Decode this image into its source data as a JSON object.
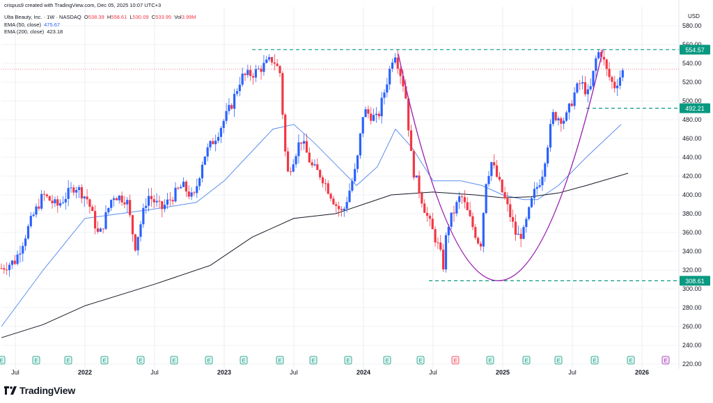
{
  "header": {
    "byline": "crispus9 created with TradingView.com, Dec 05, 2025 10:07 UTC+3",
    "symbol": "Ulta Beauty, Inc. · 1W · NASDAQ",
    "ohlc": {
      "o_label": "O",
      "o": "538.39",
      "h_label": "H",
      "h": "558.61",
      "l_label": "L",
      "l": "530.09",
      "c_label": "C",
      "c": "533.95",
      "vol_label": "Vol",
      "vol": "3.99M"
    },
    "ema50_label": "EMA (50, close)",
    "ema50_value": "475.67",
    "ema200_label": "EMA (200, close)",
    "ema200_value": "423.18"
  },
  "currency": "USD",
  "brand": "TradingView",
  "colors": {
    "up": "#2962ff",
    "down": "#f23645",
    "ema50": "#5b8def",
    "ema200": "#131722",
    "level": "#089981",
    "arc": "#9c27b0",
    "current": "#f23645",
    "grid": "#e0e3eb"
  },
  "chart_data": {
    "type": "candlestick",
    "title": "Ulta Beauty, Inc. · 1W · NASDAQ",
    "ylabel": "USD",
    "ylim": [
      220,
      600
    ],
    "y_ticks": [
      220,
      240,
      260,
      280,
      300,
      320,
      340,
      360,
      380,
      400,
      420,
      440,
      460,
      480,
      500,
      520,
      540,
      560,
      580
    ],
    "x_range": [
      2021.4,
      2026.25
    ],
    "x_ticks": [
      {
        "x": 2021.5,
        "label": "Jul",
        "bold": false
      },
      {
        "x": 2022.0,
        "label": "2022",
        "bold": true
      },
      {
        "x": 2022.5,
        "label": "Jul",
        "bold": false
      },
      {
        "x": 2023.0,
        "label": "2023",
        "bold": true
      },
      {
        "x": 2023.5,
        "label": "Jul",
        "bold": false
      },
      {
        "x": 2024.0,
        "label": "2024",
        "bold": true
      },
      {
        "x": 2024.5,
        "label": "Jul",
        "bold": false
      },
      {
        "x": 2025.0,
        "label": "2025",
        "bold": true
      },
      {
        "x": 2025.5,
        "label": "Jul",
        "bold": false
      },
      {
        "x": 2026.0,
        "label": "2026",
        "bold": true
      }
    ],
    "anchors": [
      [
        2021.4,
        322
      ],
      [
        2021.5,
        330
      ],
      [
        2021.62,
        375
      ],
      [
        2021.7,
        400
      ],
      [
        2021.8,
        388
      ],
      [
        2021.93,
        410
      ],
      [
        2022.02,
        395
      ],
      [
        2022.1,
        355
      ],
      [
        2022.2,
        400
      ],
      [
        2022.3,
        395
      ],
      [
        2022.36,
        345
      ],
      [
        2022.45,
        400
      ],
      [
        2022.55,
        385
      ],
      [
        2022.7,
        410
      ],
      [
        2022.78,
        395
      ],
      [
        2022.85,
        440
      ],
      [
        2022.95,
        465
      ],
      [
        2023.05,
        495
      ],
      [
        2023.12,
        525
      ],
      [
        2023.22,
        530
      ],
      [
        2023.35,
        545
      ],
      [
        2023.4,
        530
      ],
      [
        2023.45,
        420
      ],
      [
        2023.55,
        460
      ],
      [
        2023.63,
        430
      ],
      [
        2023.7,
        420
      ],
      [
        2023.8,
        390
      ],
      [
        2023.85,
        380
      ],
      [
        2023.95,
        430
      ],
      [
        2024.0,
        490
      ],
      [
        2024.1,
        480
      ],
      [
        2024.2,
        540
      ],
      [
        2024.22,
        555
      ],
      [
        2024.3,
        510
      ],
      [
        2024.35,
        430
      ],
      [
        2024.45,
        380
      ],
      [
        2024.55,
        340
      ],
      [
        2024.57,
        320
      ],
      [
        2024.6,
        365
      ],
      [
        2024.7,
        400
      ],
      [
        2024.8,
        360
      ],
      [
        2024.84,
        345
      ],
      [
        2024.88,
        415
      ],
      [
        2024.92,
        435
      ],
      [
        2024.98,
        410
      ],
      [
        2025.05,
        380
      ],
      [
        2025.1,
        355
      ],
      [
        2025.15,
        360
      ],
      [
        2025.22,
        400
      ],
      [
        2025.28,
        420
      ],
      [
        2025.36,
        485
      ],
      [
        2025.45,
        480
      ],
      [
        2025.52,
        510
      ],
      [
        2025.56,
        520
      ],
      [
        2025.62,
        505
      ],
      [
        2025.67,
        545
      ],
      [
        2025.7,
        555
      ],
      [
        2025.75,
        530
      ],
      [
        2025.8,
        515
      ],
      [
        2025.88,
        536
      ]
    ],
    "candles_per_year": 52,
    "series": [
      {
        "name": "EMA (50, close)",
        "color": "#5b8def",
        "points": [
          [
            2021.4,
            260
          ],
          [
            2021.7,
            320
          ],
          [
            2022.0,
            375
          ],
          [
            2022.5,
            385
          ],
          [
            2022.8,
            392
          ],
          [
            2023.0,
            415
          ],
          [
            2023.35,
            470
          ],
          [
            2023.5,
            475
          ],
          [
            2023.65,
            455
          ],
          [
            2023.85,
            425
          ],
          [
            2023.95,
            410
          ],
          [
            2024.1,
            430
          ],
          [
            2024.23,
            470
          ],
          [
            2024.35,
            450
          ],
          [
            2024.5,
            415
          ],
          [
            2024.7,
            415
          ],
          [
            2024.85,
            410
          ],
          [
            2025.0,
            400
          ],
          [
            2025.15,
            395
          ],
          [
            2025.25,
            395
          ],
          [
            2025.4,
            410
          ],
          [
            2025.6,
            440
          ],
          [
            2025.85,
            475
          ]
        ]
      },
      {
        "name": "EMA (200, close)",
        "color": "#131722",
        "points": [
          [
            2021.4,
            248
          ],
          [
            2021.7,
            262
          ],
          [
            2022.0,
            282
          ],
          [
            2022.5,
            305
          ],
          [
            2022.9,
            325
          ],
          [
            2023.2,
            355
          ],
          [
            2023.5,
            375
          ],
          [
            2023.8,
            380
          ],
          [
            2024.0,
            390
          ],
          [
            2024.2,
            400
          ],
          [
            2024.5,
            403
          ],
          [
            2024.8,
            400
          ],
          [
            2025.0,
            397
          ],
          [
            2025.2,
            398
          ],
          [
            2025.4,
            402
          ],
          [
            2025.6,
            410
          ],
          [
            2025.9,
            423
          ]
        ]
      }
    ],
    "levels": [
      {
        "label": "554.57",
        "value": 554.57,
        "x_from": 2023.2,
        "color": "#089981"
      },
      {
        "label": "492.21",
        "value": 492.21,
        "x_from": 2025.6,
        "color": "#089981"
      },
      {
        "label": "308.61",
        "value": 308.61,
        "x_from": 2024.47,
        "color": "#089981"
      }
    ],
    "current_price": 533.95,
    "cup_arc": {
      "from": [
        2024.25,
        550
      ],
      "bottom": [
        2024.96,
        308.61
      ],
      "to": [
        2025.72,
        555
      ],
      "color": "#9c27b0"
    },
    "earnings": [
      {
        "x": 2021.4,
        "label": "E",
        "type": "past"
      },
      {
        "x": 2021.65,
        "label": "E",
        "type": "past"
      },
      {
        "x": 2021.88,
        "label": "E",
        "type": "past"
      },
      {
        "x": 2022.14,
        "label": "E",
        "type": "past"
      },
      {
        "x": 2022.4,
        "label": "E",
        "type": "past"
      },
      {
        "x": 2022.64,
        "label": "E",
        "type": "past"
      },
      {
        "x": 2022.89,
        "label": "E",
        "type": "past"
      },
      {
        "x": 2023.14,
        "label": "E",
        "type": "past"
      },
      {
        "x": 2023.4,
        "label": "E",
        "type": "past"
      },
      {
        "x": 2023.64,
        "label": "E",
        "type": "past"
      },
      {
        "x": 2023.89,
        "label": "E",
        "type": "past"
      },
      {
        "x": 2024.17,
        "label": "E",
        "type": "past"
      },
      {
        "x": 2024.41,
        "label": "E",
        "type": "past"
      },
      {
        "x": 2024.66,
        "label": "E",
        "type": "negative"
      },
      {
        "x": 2024.91,
        "label": "E",
        "type": "past"
      },
      {
        "x": 2025.17,
        "label": "E",
        "type": "past"
      },
      {
        "x": 2025.4,
        "label": "E",
        "type": "past"
      },
      {
        "x": 2025.66,
        "label": "E",
        "type": "past"
      },
      {
        "x": 2025.92,
        "label": "E",
        "type": "past"
      },
      {
        "x": 2026.17,
        "label": "E",
        "type": "future"
      }
    ]
  }
}
